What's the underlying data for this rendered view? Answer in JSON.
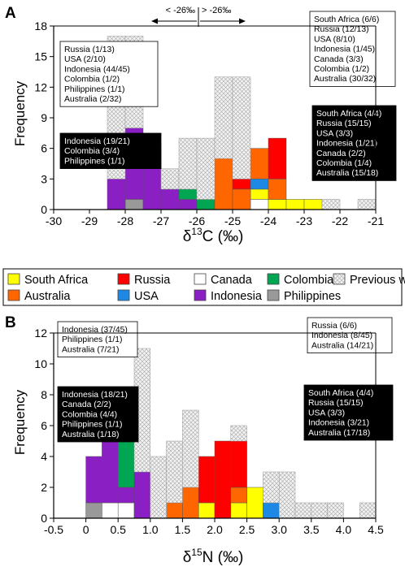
{
  "colors": {
    "South Africa": "#ffff00",
    "Russia": "#ff0000",
    "Canada": "#ffffff",
    "Colombia": "#00a651",
    "Previous work": "hatch",
    "Australia": "#ff6600",
    "USA": "#1e88e5",
    "Indonesia": "#8a1fc4",
    "Philippines": "#999999"
  },
  "legend": {
    "items": [
      "South Africa",
      "Russia",
      "Canada",
      "Colombia",
      "Previous work",
      "Australia",
      "USA",
      "Indonesia",
      "Philippines"
    ]
  },
  "chart_data": [
    {
      "type": "bar",
      "panel_label": "A",
      "xlabel_main": "δ",
      "xlabel_sup": "13",
      "xlabel_rest": "C (‰)",
      "ylabel": "Frequency",
      "xlim": [
        -30,
        -21
      ],
      "ylim": [
        0,
        18
      ],
      "xticks": [
        -30,
        -29,
        -28,
        -27,
        -26,
        -25,
        -24,
        -23,
        -22,
        -21
      ],
      "xtick_labels": [
        "-30",
        "-29",
        "-28",
        "-27",
        "-26",
        "-25",
        "-24",
        "-23",
        "-22",
        "-21"
      ],
      "yticks": [
        0,
        3,
        6,
        9,
        12,
        15,
        18
      ],
      "ytick_labels": [
        "0",
        "3",
        "6",
        "9",
        "12",
        "15",
        "18"
      ],
      "bin_width": 0.5,
      "bin_starts": [
        -28.5,
        -28.0,
        -27.5,
        -27.0,
        -26.5,
        -26.0,
        -25.5,
        -25.0,
        -24.5,
        -24.0,
        -23.5,
        -23.0,
        -22.5,
        -21.5
      ],
      "series": [
        {
          "name": "Philippines",
          "values": [
            0,
            1,
            0,
            0,
            0,
            0,
            0,
            0,
            0,
            0,
            0,
            0,
            0,
            0
          ]
        },
        {
          "name": "Indonesia",
          "values": [
            3,
            7,
            6,
            2,
            1,
            0,
            0,
            0,
            0,
            0,
            0,
            0,
            0,
            0
          ]
        },
        {
          "name": "Colombia",
          "values": [
            0,
            0,
            0,
            0,
            1,
            1,
            0,
            0,
            0,
            0,
            0,
            0,
            0,
            0
          ]
        },
        {
          "name": "Canada",
          "values": [
            0,
            0,
            0,
            0,
            0,
            0,
            0,
            0,
            1,
            0,
            0,
            0,
            0,
            0
          ]
        },
        {
          "name": "South Africa",
          "values": [
            0,
            0,
            0,
            0,
            0,
            0,
            0,
            0,
            1,
            1,
            1,
            1,
            0,
            0
          ]
        },
        {
          "name": "USA",
          "values": [
            0,
            0,
            0,
            0,
            0,
            0,
            0,
            0,
            1,
            0,
            0,
            0,
            0,
            0
          ]
        },
        {
          "name": "Australia",
          "values": [
            0,
            0,
            0,
            0,
            0,
            0,
            5,
            2,
            3,
            2,
            0,
            0,
            0,
            0
          ]
        },
        {
          "name": "Russia",
          "values": [
            0,
            0,
            0,
            0,
            0,
            0,
            0,
            1,
            0,
            4,
            0,
            0,
            0,
            0
          ]
        },
        {
          "name": "Previous work",
          "values": [
            14,
            9,
            0,
            2,
            5,
            6,
            8,
            10,
            0,
            0,
            0,
            0,
            1,
            1
          ]
        }
      ],
      "threshold": {
        "x": -26,
        "left": "< -26‰",
        "right": "> -26‰"
      },
      "boxes": [
        {
          "style": "white",
          "lines": [
            "Russia (1/13)",
            "USA (2/10)",
            "Indonesia (44/45)",
            "Colombia (1/2)",
            "Philippines (1/1)",
            "Australia (2/32)"
          ]
        },
        {
          "style": "black",
          "lines": [
            "Indonesia (19/21)",
            "Colombia (3/4)",
            "Philippines (1/1)"
          ]
        },
        {
          "style": "white",
          "lines": [
            "South Africa (6/6)",
            "Russia (12/13)",
            "USA (8/10)",
            "Indonesia (1/45)",
            "Canada (3/3)",
            "Colombia (1/2)",
            "Australia (30/32)"
          ]
        },
        {
          "style": "black",
          "lines": [
            "South Africa (4/4)",
            "Russia (15/15)",
            "USA (3/3)",
            "Indonesia (1/21)",
            "Canada (2/2)",
            "Colombia (1/4)",
            "Australia (15/18)"
          ]
        }
      ]
    },
    {
      "type": "bar",
      "panel_label": "B",
      "xlabel_main": "δ",
      "xlabel_sup": "15",
      "xlabel_rest": "N (‰)",
      "ylabel": "Frequency",
      "xlim": [
        -0.5,
        4.5
      ],
      "ylim": [
        0,
        12
      ],
      "xticks": [
        -0.5,
        0,
        0.5,
        1,
        1.5,
        2,
        2.5,
        3,
        3.5,
        4,
        4.5
      ],
      "xtick_labels": [
        "-0.5",
        "0",
        "0.5",
        "1.0",
        "1.5",
        "2.0",
        "2.5",
        "3.0",
        "3.5",
        "4.0",
        "4.5"
      ],
      "yticks": [
        0,
        2,
        4,
        6,
        8,
        10,
        12
      ],
      "ytick_labels": [
        "0",
        "2",
        "4",
        "6",
        "8",
        "10",
        "12"
      ],
      "bin_width": 0.25,
      "bin_starts": [
        0.0,
        0.25,
        0.5,
        0.75,
        1.0,
        1.25,
        1.5,
        1.75,
        2.0,
        2.25,
        2.5,
        2.75,
        3.0,
        3.25,
        3.5,
        3.75,
        4.25
      ],
      "series": [
        {
          "name": "Philippines",
          "values": [
            1,
            0,
            0,
            0,
            0,
            0,
            0,
            0,
            0,
            0,
            0,
            0,
            0,
            0,
            0,
            0,
            0
          ]
        },
        {
          "name": "Canada",
          "values": [
            0,
            1,
            1,
            0,
            0,
            0,
            0,
            0,
            0,
            0,
            0,
            0,
            0,
            0,
            0,
            0,
            0
          ]
        },
        {
          "name": "Indonesia",
          "values": [
            3,
            5,
            1,
            3,
            0,
            0,
            0,
            0,
            0,
            0,
            0,
            0,
            0,
            0,
            0,
            0,
            0
          ]
        },
        {
          "name": "Colombia",
          "values": [
            0,
            0,
            3,
            0,
            0,
            0,
            0,
            0,
            0,
            0,
            0,
            0,
            0,
            0,
            0,
            0,
            0
          ]
        },
        {
          "name": "South Africa",
          "values": [
            0,
            0,
            0,
            0,
            0,
            0,
            0,
            1,
            0,
            1,
            2,
            0,
            0,
            0,
            0,
            0,
            0
          ]
        },
        {
          "name": "Australia",
          "values": [
            0,
            0,
            0,
            0,
            0,
            1,
            2,
            0,
            0,
            1,
            0,
            0,
            0,
            0,
            0,
            0,
            0
          ]
        },
        {
          "name": "Russia",
          "values": [
            0,
            0,
            0,
            0,
            0,
            0,
            0,
            3,
            5,
            3,
            0,
            0,
            0,
            0,
            0,
            0,
            0
          ]
        },
        {
          "name": "USA",
          "values": [
            0,
            0,
            0,
            0,
            0,
            0,
            0,
            0,
            0,
            0,
            0,
            1,
            0,
            0,
            0,
            0,
            0
          ]
        },
        {
          "name": "Previous work",
          "values": [
            0,
            0,
            0,
            8,
            4,
            4,
            5,
            0,
            0,
            1,
            0,
            2,
            3,
            1,
            1,
            1,
            1
          ]
        }
      ],
      "boxes": [
        {
          "style": "white",
          "lines": [
            "Indonesia (37/45)",
            "Philippines (1/1)",
            "Australia (7/21)"
          ]
        },
        {
          "style": "black",
          "lines": [
            "Indonesia (18/21)",
            "Canada (2/2)",
            "Colombia (4/4)",
            "Philippines (1/1)",
            "Australia (1/18)"
          ]
        },
        {
          "style": "white",
          "lines": [
            "Russia (6/6)",
            "Indonesia (8/45)",
            "Australia (14/21)"
          ]
        },
        {
          "style": "black",
          "lines": [
            "South Africa (4/4)",
            "Russia (15/15)",
            "USA (3/3)",
            "Indonesia (3/21)",
            "Australia (17/18)"
          ]
        }
      ]
    }
  ]
}
